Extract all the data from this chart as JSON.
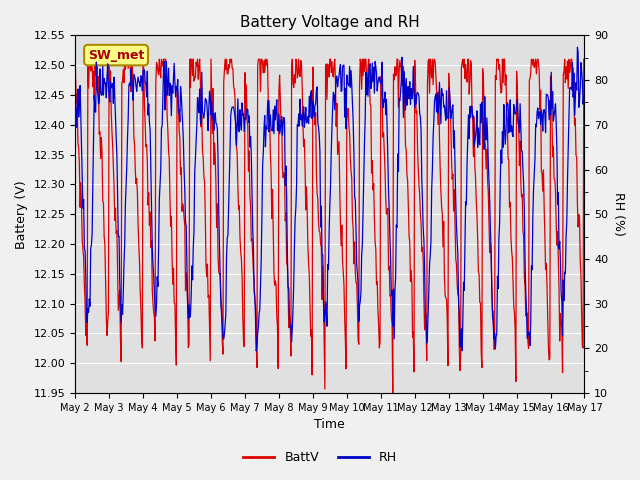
{
  "title": "Battery Voltage and RH",
  "xlabel": "Time",
  "ylabel_left": "Battery (V)",
  "ylabel_right": "RH (%)",
  "annotation": "SW_met",
  "ylim_left": [
    11.95,
    12.55
  ],
  "ylim_right": [
    10,
    90
  ],
  "yticks_left": [
    11.95,
    12.0,
    12.05,
    12.1,
    12.15,
    12.2,
    12.25,
    12.3,
    12.35,
    12.4,
    12.45,
    12.5,
    12.55
  ],
  "yticks_right": [
    10,
    20,
    30,
    40,
    50,
    60,
    70,
    80,
    90
  ],
  "xtick_labels": [
    "May 2",
    "May 3",
    "May 4",
    "May 5",
    "May 6",
    "May 7",
    "May 8",
    "May 9",
    "May 10",
    "May 11",
    "May 12",
    "May 13",
    "May 14",
    "May 15",
    "May 16",
    "May 17"
  ],
  "batt_color": "#dd0000",
  "rh_color": "#0000cc",
  "fig_bg_color": "#f0f0f0",
  "plot_bg_color": "#e0e0e0",
  "grid_color": "#ffffff",
  "legend_batt": "BattV",
  "legend_rh": "RH"
}
